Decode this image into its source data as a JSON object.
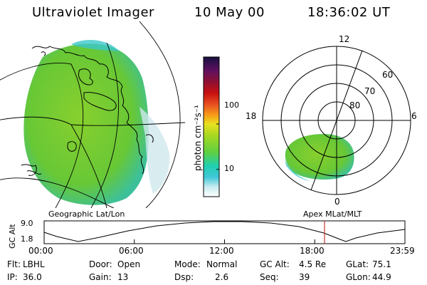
{
  "header": {
    "title": "Ultraviolet Imager",
    "date": "10 May 00",
    "time": "18:36:02 UT"
  },
  "colorbar": {
    "label": "photon cm⁻²s⁻¹",
    "ticks": [
      {
        "value": 10,
        "label": "10"
      },
      {
        "value": 100,
        "label": "100"
      }
    ]
  },
  "geo_panel": {
    "caption": "Geographic Lat/Lon"
  },
  "polar_panel": {
    "caption": "Apex  MLat/MLT",
    "mlt_labels": [
      "12",
      "18",
      "6",
      "0"
    ],
    "lat_labels": [
      "60",
      "70",
      "80"
    ]
  },
  "altitude_plot": {
    "ylabel": "GC Alt",
    "yticks": [
      "9.0",
      "1.8"
    ],
    "xticks": [
      "00:00",
      "06:00",
      "12:00",
      "18:00",
      "23:59"
    ],
    "marker_time": "18:36"
  },
  "info": {
    "rows": [
      [
        {
          "label": "Flt:",
          "value": "LBHL"
        },
        {
          "label": "Door:",
          "value": "Open"
        },
        {
          "label": "Mode:",
          "value": "Normal"
        },
        {
          "label": "GC Alt:",
          "value": "4.5 Re"
        },
        {
          "label": "GLat:",
          "value": "75.1"
        }
      ],
      [
        {
          "label": "IP:",
          "value": "36.0"
        },
        {
          "label": "Gain:",
          "value": "13"
        },
        {
          "label": "Dsp:",
          "value": "2.6"
        },
        {
          "label": "Seq:",
          "value": "39"
        },
        {
          "label": "GLon:",
          "value": "44.9"
        }
      ]
    ]
  },
  "colors": {
    "aurora_main": "#7ed321",
    "aurora_edge": "#3cc8c8",
    "marker": "#c0392b",
    "outline": "#000000"
  }
}
